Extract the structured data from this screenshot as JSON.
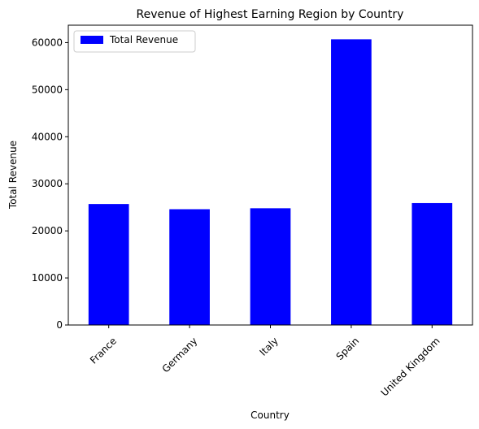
{
  "chart_data": {
    "type": "bar",
    "title": "Revenue of Highest Earning Region by Country",
    "xlabel": "Country",
    "ylabel": "Total Revenue",
    "categories": [
      "France",
      "Germany",
      "Italy",
      "Spain",
      "United Kingdom"
    ],
    "series": [
      {
        "name": "Total Revenue",
        "values": [
          25700,
          24600,
          24800,
          60700,
          25900
        ],
        "color": "#0000ff"
      }
    ],
    "ylim": [
      0,
      63700
    ],
    "yticks": [
      0,
      10000,
      20000,
      30000,
      40000,
      50000,
      60000
    ],
    "grid": false,
    "legend_position": "top-left"
  }
}
